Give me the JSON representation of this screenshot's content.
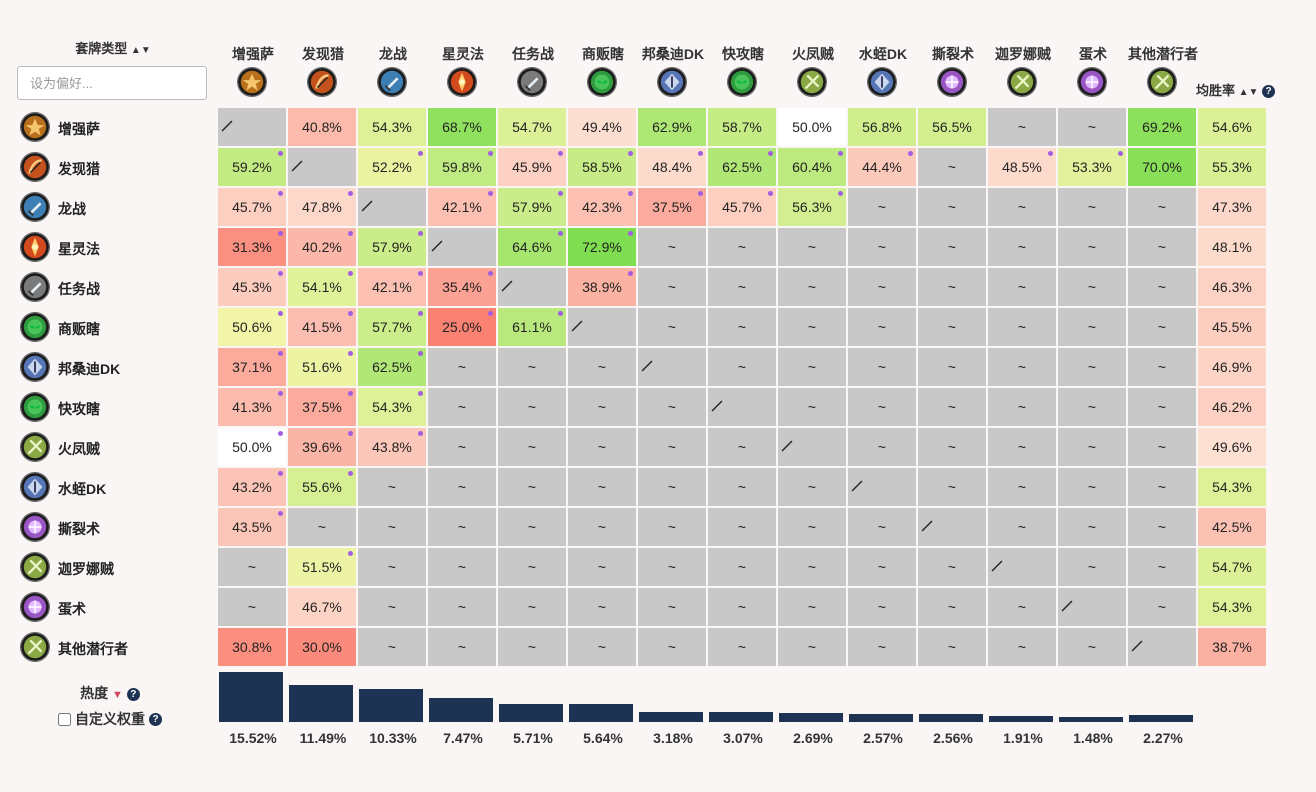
{
  "header": {
    "deck_type_label": "套牌类型",
    "sort_icon": "▲▼",
    "pref_placeholder": "设为偏好...",
    "avg_label": "均胜率"
  },
  "columns": [
    {
      "name": "增强萨",
      "icon": "shaman-icon",
      "color": "#b8701c"
    },
    {
      "name": "发现猎",
      "icon": "hunter-icon",
      "color": "#c4521d"
    },
    {
      "name": "龙战",
      "icon": "warrior-icon",
      "color": "#3d7fb5"
    },
    {
      "name": "星灵法",
      "icon": "mage-icon",
      "color": "#d24a1d"
    },
    {
      "name": "任务战",
      "icon": "warrior-icon",
      "color": "#7a7a7a"
    },
    {
      "name": "商贩瞎",
      "icon": "demonhunter-icon",
      "color": "#2f9a3e"
    },
    {
      "name": "邦桑迪DK",
      "icon": "deathknight-icon",
      "color": "#5575b5"
    },
    {
      "name": "快攻瞎",
      "icon": "demonhunter-icon",
      "color": "#2f9a3e"
    },
    {
      "name": "火凤贼",
      "icon": "rogue-icon",
      "color": "#8aa843"
    },
    {
      "name": "水蛭DK",
      "icon": "deathknight-icon",
      "color": "#5575b5"
    },
    {
      "name": "撕裂术",
      "icon": "warlock-icon",
      "color": "#9a55c4"
    },
    {
      "name": "迦罗娜贼",
      "icon": "rogue-icon",
      "color": "#8aa843"
    },
    {
      "name": "蛋术",
      "icon": "warlock-icon",
      "color": "#9a55c4"
    },
    {
      "name": "其他潜行者",
      "icon": "rogue-icon",
      "color": "#8aa843"
    }
  ],
  "rows": [
    {
      "name": "增强萨",
      "icon": "shaman-icon",
      "color": "#b8701c",
      "avg": "54.6%",
      "cells": [
        "/",
        "40.8%",
        "54.3%",
        "68.7%",
        "54.7%",
        "49.4%",
        "62.9%",
        "58.7%",
        "50.0%",
        "56.8%",
        "56.5%",
        "~",
        "~",
        "69.2%"
      ],
      "dots": [
        0,
        0,
        0,
        0,
        0,
        0,
        0,
        0,
        0,
        0,
        0,
        0,
        0,
        0
      ]
    },
    {
      "name": "发现猎",
      "icon": "hunter-icon",
      "color": "#c4521d",
      "avg": "55.3%",
      "cells": [
        "59.2%",
        "/",
        "52.2%",
        "59.8%",
        "45.9%",
        "58.5%",
        "48.4%",
        "62.5%",
        "60.4%",
        "44.4%",
        "~",
        "48.5%",
        "53.3%",
        "70.0%"
      ],
      "dots": [
        1,
        0,
        1,
        1,
        1,
        1,
        1,
        1,
        1,
        1,
        0,
        1,
        1,
        0
      ]
    },
    {
      "name": "龙战",
      "icon": "warrior-icon",
      "color": "#3d7fb5",
      "avg": "47.3%",
      "cells": [
        "45.7%",
        "47.8%",
        "/",
        "42.1%",
        "57.9%",
        "42.3%",
        "37.5%",
        "45.7%",
        "56.3%",
        "~",
        "~",
        "~",
        "~",
        "~"
      ],
      "dots": [
        1,
        1,
        0,
        1,
        1,
        1,
        1,
        1,
        1,
        0,
        0,
        0,
        0,
        0
      ]
    },
    {
      "name": "星灵法",
      "icon": "mage-icon",
      "color": "#d24a1d",
      "avg": "48.1%",
      "cells": [
        "31.3%",
        "40.2%",
        "57.9%",
        "/",
        "64.6%",
        "72.9%",
        "~",
        "~",
        "~",
        "~",
        "~",
        "~",
        "~",
        "~"
      ],
      "dots": [
        1,
        1,
        1,
        0,
        1,
        1,
        0,
        0,
        0,
        0,
        0,
        0,
        0,
        0
      ]
    },
    {
      "name": "任务战",
      "icon": "warrior-icon",
      "color": "#7a7a7a",
      "avg": "46.3%",
      "cells": [
        "45.3%",
        "54.1%",
        "42.1%",
        "35.4%",
        "/",
        "38.9%",
        "~",
        "~",
        "~",
        "~",
        "~",
        "~",
        "~",
        "~"
      ],
      "dots": [
        1,
        1,
        1,
        1,
        0,
        1,
        0,
        0,
        0,
        0,
        0,
        0,
        0,
        0
      ]
    },
    {
      "name": "商贩瞎",
      "icon": "demonhunter-icon",
      "color": "#2f9a3e",
      "avg": "45.5%",
      "cells": [
        "50.6%",
        "41.5%",
        "57.7%",
        "25.0%",
        "61.1%",
        "/",
        "~",
        "~",
        "~",
        "~",
        "~",
        "~",
        "~",
        "~"
      ],
      "dots": [
        1,
        1,
        1,
        1,
        1,
        0,
        0,
        0,
        0,
        0,
        0,
        0,
        0,
        0
      ]
    },
    {
      "name": "邦桑迪DK",
      "icon": "deathknight-icon",
      "color": "#5575b5",
      "avg": "46.9%",
      "cells": [
        "37.1%",
        "51.6%",
        "62.5%",
        "~",
        "~",
        "~",
        "/",
        "~",
        "~",
        "~",
        "~",
        "~",
        "~",
        "~"
      ],
      "dots": [
        1,
        1,
        1,
        0,
        0,
        0,
        0,
        0,
        0,
        0,
        0,
        0,
        0,
        0
      ]
    },
    {
      "name": "快攻瞎",
      "icon": "demonhunter-icon",
      "color": "#2f9a3e",
      "avg": "46.2%",
      "cells": [
        "41.3%",
        "37.5%",
        "54.3%",
        "~",
        "~",
        "~",
        "~",
        "/",
        "~",
        "~",
        "~",
        "~",
        "~",
        "~"
      ],
      "dots": [
        1,
        1,
        1,
        0,
        0,
        0,
        0,
        0,
        0,
        0,
        0,
        0,
        0,
        0
      ]
    },
    {
      "name": "火凤贼",
      "icon": "rogue-icon",
      "color": "#8aa843",
      "avg": "49.6%",
      "cells": [
        "50.0%",
        "39.6%",
        "43.8%",
        "~",
        "~",
        "~",
        "~",
        "~",
        "/",
        "~",
        "~",
        "~",
        "~",
        "~"
      ],
      "dots": [
        1,
        1,
        1,
        0,
        0,
        0,
        0,
        0,
        0,
        0,
        0,
        0,
        0,
        0
      ]
    },
    {
      "name": "水蛭DK",
      "icon": "deathknight-icon",
      "color": "#5575b5",
      "avg": "54.3%",
      "cells": [
        "43.2%",
        "55.6%",
        "~",
        "~",
        "~",
        "~",
        "~",
        "~",
        "~",
        "/",
        "~",
        "~",
        "~",
        "~"
      ],
      "dots": [
        1,
        1,
        0,
        0,
        0,
        0,
        0,
        0,
        0,
        0,
        0,
        0,
        0,
        0
      ]
    },
    {
      "name": "撕裂术",
      "icon": "warlock-icon",
      "color": "#9a55c4",
      "avg": "42.5%",
      "cells": [
        "43.5%",
        "~",
        "~",
        "~",
        "~",
        "~",
        "~",
        "~",
        "~",
        "~",
        "/",
        "~",
        "~",
        "~"
      ],
      "dots": [
        1,
        0,
        0,
        0,
        0,
        0,
        0,
        0,
        0,
        0,
        0,
        0,
        0,
        0
      ]
    },
    {
      "name": "迦罗娜贼",
      "icon": "rogue-icon",
      "color": "#8aa843",
      "avg": "54.7%",
      "cells": [
        "~",
        "51.5%",
        "~",
        "~",
        "~",
        "~",
        "~",
        "~",
        "~",
        "~",
        "~",
        "/",
        "~",
        "~"
      ],
      "dots": [
        0,
        1,
        0,
        0,
        0,
        0,
        0,
        0,
        0,
        0,
        0,
        0,
        0,
        0
      ]
    },
    {
      "name": "蛋术",
      "icon": "warlock-icon",
      "color": "#9a55c4",
      "avg": "54.3%",
      "cells": [
        "~",
        "46.7%",
        "~",
        "~",
        "~",
        "~",
        "~",
        "~",
        "~",
        "~",
        "~",
        "~",
        "/",
        "~"
      ],
      "dots": [
        0,
        0,
        0,
        0,
        0,
        0,
        0,
        0,
        0,
        0,
        0,
        0,
        0,
        0
      ]
    },
    {
      "name": "其他潜行者",
      "icon": "rogue-icon",
      "color": "#8aa843",
      "avg": "38.7%",
      "cells": [
        "30.8%",
        "30.0%",
        "~",
        "~",
        "~",
        "~",
        "~",
        "~",
        "~",
        "~",
        "~",
        "~",
        "~",
        "/"
      ],
      "dots": [
        0,
        0,
        0,
        0,
        0,
        0,
        0,
        0,
        0,
        0,
        0,
        0,
        0,
        0
      ]
    }
  ],
  "popularity": {
    "label": "热度",
    "custom_weight_label": "自定义权重",
    "values": [
      15.52,
      11.49,
      10.33,
      7.47,
      5.71,
      5.64,
      3.18,
      3.07,
      2.69,
      2.57,
      2.56,
      1.91,
      1.48,
      2.27
    ],
    "labels": [
      "15.52%",
      "11.49%",
      "10.33%",
      "7.47%",
      "5.71%",
      "5.64%",
      "3.18%",
      "3.07%",
      "2.69%",
      "2.57%",
      "2.56%",
      "1.91%",
      "1.48%",
      "2.27%"
    ]
  },
  "colors": {
    "empty": "#c8c8c8",
    "bar": "#1e3353",
    "dot": "#a35de0"
  }
}
